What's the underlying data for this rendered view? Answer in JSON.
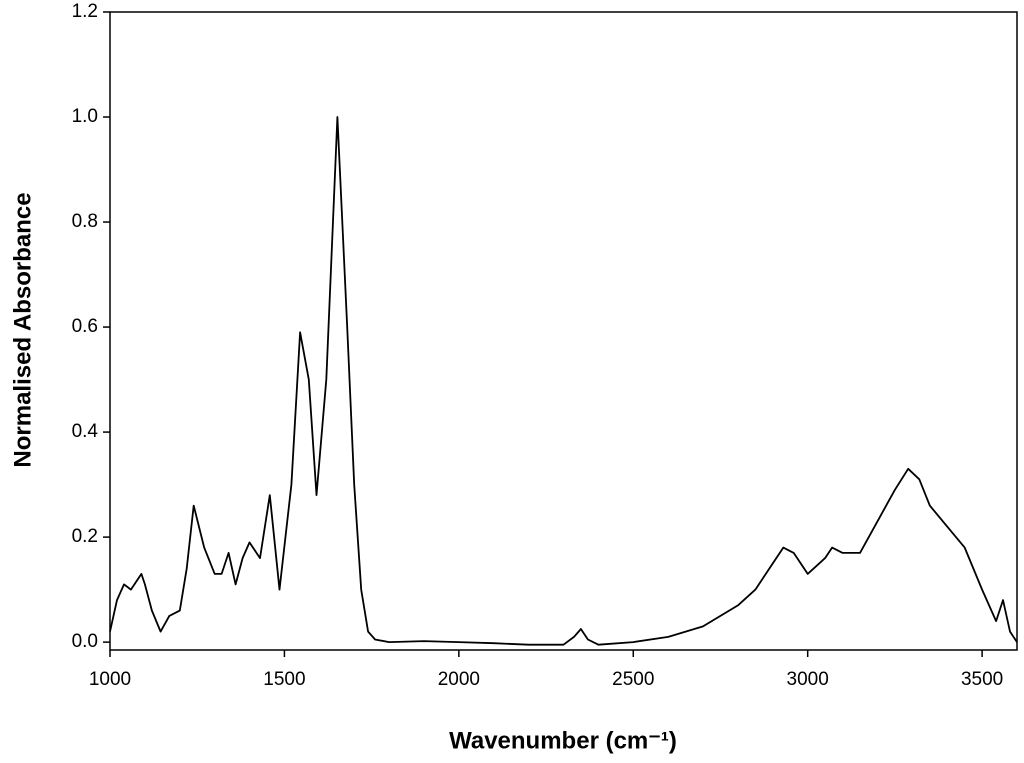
{
  "chart_data": {
    "type": "line",
    "xlabel": "Wavenumber (cm⁻¹)",
    "ylabel": "Normalised Absorbance",
    "xlim": [
      1000,
      3600
    ],
    "ylim": [
      -0.015,
      1.2
    ],
    "xticks": [
      1000,
      1500,
      2000,
      2500,
      3000,
      3500
    ],
    "yticks": [
      {
        "value": 0,
        "label": "0.0"
      },
      0.2,
      0.4,
      0.6,
      0.8,
      {
        "value": 1,
        "label": "1.0"
      },
      1.2
    ],
    "series": [
      {
        "color": "#000000",
        "x": [
          1000,
          1020,
          1040,
          1060,
          1080,
          1090,
          1100,
          1120,
          1145,
          1170,
          1200,
          1220,
          1240,
          1270,
          1300,
          1320,
          1340,
          1360,
          1380,
          1400,
          1430,
          1458,
          1486,
          1520,
          1545,
          1570,
          1592,
          1620,
          1652,
          1680,
          1700,
          1720,
          1740,
          1760,
          1800,
          1900,
          2000,
          2100,
          2200,
          2300,
          2330,
          2350,
          2370,
          2400,
          2500,
          2600,
          2700,
          2800,
          2850,
          2880,
          2930,
          2960,
          3000,
          3050,
          3070,
          3100,
          3150,
          3200,
          3250,
          3288,
          3320,
          3350,
          3400,
          3450,
          3500,
          3540,
          3560,
          3580,
          3600
        ],
        "values": [
          0.02,
          0.08,
          0.11,
          0.1,
          0.12,
          0.13,
          0.11,
          0.06,
          0.02,
          0.05,
          0.06,
          0.14,
          0.26,
          0.18,
          0.13,
          0.13,
          0.17,
          0.11,
          0.16,
          0.19,
          0.16,
          0.28,
          0.1,
          0.3,
          0.59,
          0.5,
          0.28,
          0.5,
          1.0,
          0.6,
          0.3,
          0.1,
          0.02,
          0.005,
          0.0,
          0.002,
          0.0,
          -0.002,
          -0.005,
          -0.005,
          0.01,
          0.025,
          0.005,
          -0.005,
          0.0,
          0.01,
          0.03,
          0.07,
          0.1,
          0.13,
          0.18,
          0.17,
          0.13,
          0.16,
          0.18,
          0.17,
          0.17,
          0.23,
          0.29,
          0.33,
          0.31,
          0.26,
          0.22,
          0.18,
          0.1,
          0.04,
          0.08,
          0.02,
          0.0
        ]
      }
    ]
  }
}
